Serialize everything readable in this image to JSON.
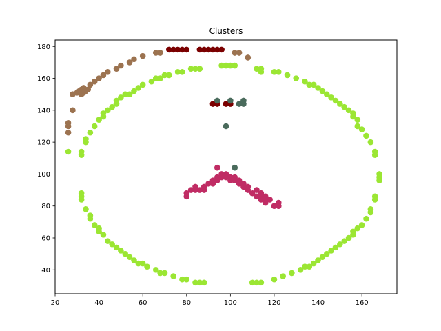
{
  "chart_data": {
    "type": "scatter",
    "title": "Clusters",
    "xlabel": "",
    "ylabel": "",
    "xlim": [
      20,
      176
    ],
    "ylim": [
      25,
      184
    ],
    "xticks": [
      20,
      40,
      60,
      80,
      100,
      120,
      140,
      160
    ],
    "yticks": [
      40,
      60,
      80,
      100,
      120,
      140,
      160,
      180
    ],
    "grid": false,
    "series": [
      {
        "color": "#9c7350",
        "points": [
          [
            26,
            126
          ],
          [
            26,
            130
          ],
          [
            26,
            132
          ],
          [
            28,
            140
          ],
          [
            28,
            150
          ],
          [
            30,
            151
          ],
          [
            31,
            152
          ],
          [
            32,
            153
          ],
          [
            32,
            150
          ],
          [
            33,
            151
          ],
          [
            33,
            154
          ],
          [
            34,
            152
          ],
          [
            35,
            153
          ],
          [
            36,
            156
          ],
          [
            38,
            158
          ],
          [
            40,
            160
          ],
          [
            42,
            162
          ],
          [
            44,
            164
          ],
          [
            48,
            166
          ],
          [
            50,
            168
          ],
          [
            54,
            170
          ],
          [
            56,
            172
          ],
          [
            60,
            174
          ],
          [
            66,
            176
          ],
          [
            68,
            176
          ],
          [
            102,
            176
          ],
          [
            104,
            176
          ],
          [
            108,
            173
          ]
        ]
      },
      {
        "color": "#7b0000",
        "points": [
          [
            72,
            178
          ],
          [
            74,
            178
          ],
          [
            76,
            178
          ],
          [
            78,
            178
          ],
          [
            80,
            178
          ],
          [
            86,
            178
          ],
          [
            88,
            178
          ],
          [
            90,
            178
          ],
          [
            92,
            178
          ],
          [
            94,
            178
          ],
          [
            96,
            178
          ],
          [
            92,
            144
          ],
          [
            94,
            144
          ],
          [
            98,
            144
          ],
          [
            100,
            144
          ]
        ]
      },
      {
        "color": "#9be633",
        "points": [
          [
            26,
            114
          ],
          [
            32,
            112
          ],
          [
            32,
            114
          ],
          [
            34,
            120
          ],
          [
            34,
            122
          ],
          [
            36,
            126
          ],
          [
            38,
            130
          ],
          [
            40,
            134
          ],
          [
            42,
            136
          ],
          [
            42,
            138
          ],
          [
            44,
            140
          ],
          [
            46,
            142
          ],
          [
            48,
            144
          ],
          [
            48,
            146
          ],
          [
            50,
            148
          ],
          [
            52,
            150
          ],
          [
            54,
            150
          ],
          [
            56,
            152
          ],
          [
            58,
            154
          ],
          [
            60,
            156
          ],
          [
            64,
            158
          ],
          [
            66,
            160
          ],
          [
            68,
            160
          ],
          [
            70,
            162
          ],
          [
            72,
            162
          ],
          [
            76,
            164
          ],
          [
            78,
            164
          ],
          [
            82,
            166
          ],
          [
            84,
            166
          ],
          [
            86,
            166
          ],
          [
            96,
            168
          ],
          [
            98,
            168
          ],
          [
            100,
            168
          ],
          [
            102,
            168
          ],
          [
            112,
            166
          ],
          [
            114,
            166
          ],
          [
            114,
            164
          ],
          [
            120,
            164
          ],
          [
            122,
            164
          ],
          [
            126,
            162
          ],
          [
            130,
            160
          ],
          [
            134,
            158
          ],
          [
            136,
            156
          ],
          [
            138,
            156
          ],
          [
            140,
            154
          ],
          [
            142,
            152
          ],
          [
            144,
            150
          ],
          [
            146,
            148
          ],
          [
            148,
            146
          ],
          [
            150,
            144
          ],
          [
            152,
            142
          ],
          [
            154,
            140
          ],
          [
            156,
            138
          ],
          [
            156,
            136
          ],
          [
            158,
            134
          ],
          [
            158,
            130
          ],
          [
            160,
            128
          ],
          [
            162,
            124
          ],
          [
            164,
            120
          ],
          [
            166,
            114
          ],
          [
            166,
            112
          ],
          [
            168,
            100
          ],
          [
            168,
            98
          ],
          [
            168,
            96
          ],
          [
            166,
            86
          ],
          [
            166,
            84
          ],
          [
            164,
            78
          ],
          [
            164,
            76
          ],
          [
            162,
            72
          ],
          [
            160,
            68
          ],
          [
            158,
            66
          ],
          [
            156,
            64
          ],
          [
            156,
            62
          ],
          [
            154,
            60
          ],
          [
            152,
            58
          ],
          [
            150,
            56
          ],
          [
            148,
            54
          ],
          [
            146,
            52
          ],
          [
            144,
            50
          ],
          [
            142,
            48
          ],
          [
            140,
            46
          ],
          [
            138,
            44
          ],
          [
            136,
            42
          ],
          [
            134,
            42
          ],
          [
            132,
            40
          ],
          [
            128,
            38
          ],
          [
            124,
            36
          ],
          [
            120,
            34
          ],
          [
            114,
            32
          ],
          [
            112,
            32
          ],
          [
            110,
            32
          ],
          [
            88,
            32
          ],
          [
            86,
            32
          ],
          [
            84,
            32
          ],
          [
            80,
            34
          ],
          [
            78,
            34
          ],
          [
            74,
            36
          ],
          [
            70,
            38
          ],
          [
            68,
            38
          ],
          [
            66,
            40
          ],
          [
            62,
            42
          ],
          [
            60,
            44
          ],
          [
            58,
            44
          ],
          [
            56,
            46
          ],
          [
            54,
            48
          ],
          [
            52,
            50
          ],
          [
            50,
            52
          ],
          [
            48,
            54
          ],
          [
            46,
            56
          ],
          [
            44,
            58
          ],
          [
            42,
            62
          ],
          [
            40,
            64
          ],
          [
            40,
            66
          ],
          [
            38,
            68
          ],
          [
            36,
            72
          ],
          [
            36,
            74
          ],
          [
            34,
            78
          ],
          [
            32,
            84
          ],
          [
            32,
            86
          ],
          [
            32,
            88
          ]
        ]
      },
      {
        "color": "#4a6b5c",
        "points": [
          [
            94,
            146
          ],
          [
            100,
            146
          ],
          [
            104,
            144
          ],
          [
            106,
            144
          ],
          [
            106,
            146
          ],
          [
            98,
            130
          ],
          [
            102,
            104
          ]
        ]
      },
      {
        "color": "#c02c64",
        "points": [
          [
            80,
            86
          ],
          [
            80,
            88
          ],
          [
            82,
            90
          ],
          [
            84,
            90
          ],
          [
            84,
            92
          ],
          [
            86,
            90
          ],
          [
            88,
            90
          ],
          [
            88,
            92
          ],
          [
            90,
            94
          ],
          [
            92,
            94
          ],
          [
            92,
            96
          ],
          [
            94,
            96
          ],
          [
            94,
            98
          ],
          [
            96,
            98
          ],
          [
            96,
            100
          ],
          [
            98,
            100
          ],
          [
            98,
            98
          ],
          [
            100,
            98
          ],
          [
            100,
            96
          ],
          [
            102,
            98
          ],
          [
            102,
            96
          ],
          [
            104,
            96
          ],
          [
            104,
            94
          ],
          [
            106,
            92
          ],
          [
            106,
            94
          ],
          [
            108,
            90
          ],
          [
            108,
            92
          ],
          [
            110,
            88
          ],
          [
            112,
            86
          ],
          [
            112,
            90
          ],
          [
            114,
            86
          ],
          [
            114,
            88
          ],
          [
            114,
            84
          ],
          [
            116,
            82
          ],
          [
            116,
            84
          ],
          [
            116,
            86
          ],
          [
            118,
            84
          ],
          [
            120,
            80
          ],
          [
            122,
            80
          ],
          [
            122,
            82
          ],
          [
            94,
            104
          ]
        ]
      }
    ]
  }
}
